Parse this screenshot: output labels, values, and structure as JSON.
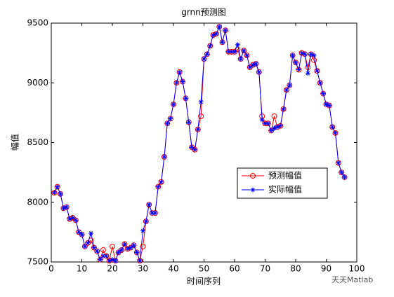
{
  "chart_data": {
    "type": "line",
    "title": "grnn预测图",
    "x_label": "时间序列",
    "y_label": "幅值",
    "x": [
      1,
      2,
      3,
      4,
      5,
      6,
      7,
      8,
      9,
      10,
      11,
      12,
      13,
      14,
      15,
      16,
      17,
      18,
      19,
      20,
      21,
      22,
      23,
      24,
      25,
      26,
      27,
      28,
      29,
      30,
      31,
      32,
      33,
      34,
      35,
      36,
      37,
      38,
      39,
      40,
      41,
      42,
      43,
      44,
      45,
      46,
      47,
      48,
      49,
      50,
      51,
      52,
      53,
      54,
      55,
      56,
      57,
      58,
      59,
      60,
      61,
      62,
      63,
      64,
      65,
      66,
      67,
      68,
      69,
      70,
      71,
      72,
      73,
      74,
      75,
      76,
      77,
      78,
      79,
      80,
      81,
      82,
      83,
      84,
      85,
      86,
      87,
      88,
      89,
      90,
      91,
      92,
      93,
      94,
      95,
      96
    ],
    "series": [
      {
        "name": "预测幅值",
        "color": "#ff0000",
        "marker": "circle",
        "values": [
          8080,
          8130,
          8070,
          7950,
          7960,
          7860,
          7870,
          7850,
          7750,
          7730,
          7630,
          7660,
          7680,
          7620,
          7590,
          7520,
          7600,
          7550,
          7510,
          7630,
          7510,
          7580,
          7600,
          7650,
          7610,
          7620,
          7640,
          7580,
          7510,
          7630,
          7840,
          7980,
          7910,
          7910,
          8130,
          8170,
          8380,
          8660,
          8700,
          8820,
          9000,
          9090,
          9010,
          8870,
          8670,
          8460,
          8440,
          8610,
          8720,
          9200,
          9240,
          9310,
          9400,
          9410,
          9470,
          9340,
          9440,
          9260,
          9260,
          9260,
          9280,
          9200,
          9270,
          9230,
          9130,
          9150,
          9160,
          9090,
          8720,
          8660,
          8660,
          8600,
          8720,
          8630,
          8640,
          8780,
          8940,
          8980,
          9230,
          9170,
          9110,
          9250,
          9240,
          9130,
          9240,
          9190,
          9100,
          9000,
          8910,
          8820,
          8810,
          8630,
          8580,
          8330,
          8250,
          8210
        ]
      },
      {
        "name": "实际幅值",
        "color": "#0000ff",
        "marker": "asterisk",
        "values": [
          8080,
          8130,
          8070,
          7950,
          7960,
          7860,
          7870,
          7850,
          7750,
          7730,
          7630,
          7660,
          7740,
          7620,
          7590,
          7520,
          7550,
          7550,
          7510,
          7520,
          7510,
          7580,
          7600,
          7650,
          7610,
          7620,
          7640,
          7580,
          7510,
          7760,
          7840,
          7980,
          7910,
          7910,
          8130,
          8170,
          8380,
          8660,
          8700,
          8820,
          9000,
          9090,
          9010,
          8870,
          8670,
          8460,
          8440,
          8610,
          8840,
          9200,
          9240,
          9310,
          9400,
          9410,
          9470,
          9340,
          9440,
          9260,
          9260,
          9260,
          9320,
          9200,
          9270,
          9230,
          9130,
          9150,
          9160,
          9090,
          8690,
          8660,
          8660,
          8600,
          8620,
          8630,
          8640,
          8780,
          8940,
          8980,
          9230,
          9170,
          9110,
          9250,
          9240,
          9080,
          9240,
          9230,
          9100,
          9000,
          8910,
          8820,
          8810,
          8630,
          8580,
          8330,
          8250,
          8210
        ]
      }
    ],
    "xlim": [
      0,
      100
    ],
    "xticks": [
      0,
      10,
      20,
      30,
      40,
      50,
      60,
      70,
      80,
      90,
      100
    ],
    "ylim": [
      7500,
      9500
    ],
    "yticks": [
      7500,
      8000,
      8500,
      9000,
      9500
    ],
    "legend": "right",
    "watermark": "天天Matlab"
  }
}
